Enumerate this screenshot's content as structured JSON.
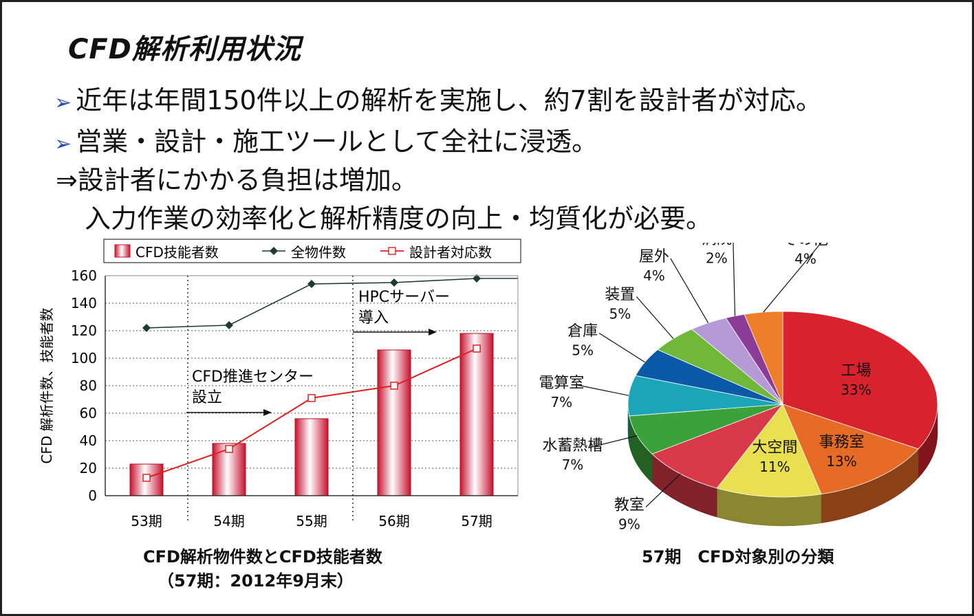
{
  "slide": {
    "title": "CFD解析利用状況",
    "bullets": [
      {
        "marker": "➢",
        "text": "近年は年間150件以上の解析を実施し、約7割を設計者が対応。"
      },
      {
        "marker": "➢",
        "text": "営業・設計・施工ツールとして全社に浸透。"
      },
      {
        "marker": "",
        "text": "⇒設計者にかかる負担は増加。"
      },
      {
        "marker": "",
        "text": "入力作業の効率化と解析精度の向上・均質化が必要。"
      }
    ]
  },
  "chart_data": [
    {
      "type": "bar",
      "title": "CFD解析物件数とCFD技能者数",
      "subtitle": "（57期：2012年9月末）",
      "ylabel": "CFD 解析件数、技能者数",
      "xlabel": "",
      "ylim": [
        0,
        160
      ],
      "yticks": [
        0,
        20,
        40,
        60,
        80,
        100,
        120,
        140,
        160
      ],
      "grid": true,
      "legend_position": "top",
      "categories": [
        "53期",
        "54期",
        "55期",
        "56期",
        "57期"
      ],
      "series": [
        {
          "name": "CFD技能者数",
          "kind": "bar",
          "values": [
            23,
            38,
            56,
            106,
            118
          ],
          "color": "#c8102e"
        },
        {
          "name": "全物件数",
          "kind": "line",
          "marker": "diamond",
          "values": [
            122,
            124,
            154,
            155,
            158
          ],
          "color": "#1f3b2f"
        },
        {
          "name": "設計者対応数",
          "kind": "line",
          "marker": "square",
          "values": [
            13,
            34,
            71,
            80,
            107
          ],
          "color": "#e02020"
        }
      ],
      "annotations": [
        {
          "text": [
            "CFD推進センター",
            "設立"
          ],
          "between": [
            "53期",
            "54期"
          ]
        },
        {
          "text": [
            "HPCサーバー",
            "導入"
          ],
          "between": [
            "55期",
            "56期"
          ]
        }
      ]
    },
    {
      "type": "pie",
      "title": "57期　CFD対象別の分類",
      "slices": [
        {
          "label": "工場",
          "value": 33,
          "color": "#d8232f"
        },
        {
          "label": "事務室",
          "value": 13,
          "color": "#e76a25"
        },
        {
          "label": "大空間",
          "value": 11,
          "color": "#e8e050"
        },
        {
          "label": "教室",
          "value": 9,
          "color": "#d93a4a"
        },
        {
          "label": "水蓄熱槽",
          "value": 7,
          "color": "#3aa23a"
        },
        {
          "label": "電算室",
          "value": 7,
          "color": "#1aa5b8"
        },
        {
          "label": "倉庫",
          "value": 5,
          "color": "#0a5aa8"
        },
        {
          "label": "装置",
          "value": 5,
          "color": "#6fb83a"
        },
        {
          "label": "屋外",
          "value": 4,
          "color": "#b69ad8"
        },
        {
          "label": "病院",
          "value": 2,
          "color": "#8a3c96"
        },
        {
          "label": "その他",
          "value": 4,
          "color": "#ef7e2a"
        }
      ]
    }
  ]
}
